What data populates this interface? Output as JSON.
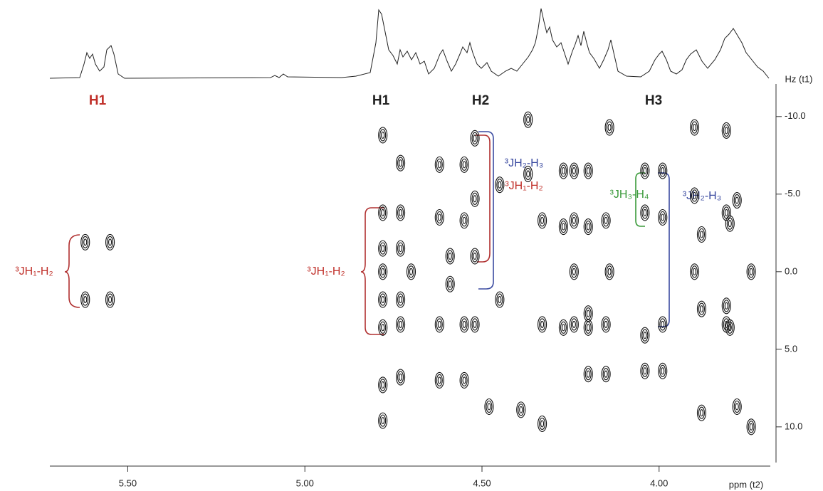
{
  "chart_data": {
    "type": "contour",
    "x_label": "ppm (t2)",
    "y_label": "Hz (t1)",
    "xlim": [
      5.72,
      3.69
    ],
    "ylim": [
      -12.1,
      12.3
    ],
    "xticks": [
      {
        "value": 5.5,
        "label": "5.50"
      },
      {
        "value": 5.0,
        "label": "5.00"
      },
      {
        "value": 4.5,
        "label": "4.50"
      },
      {
        "value": 4.0,
        "label": "4.00"
      }
    ],
    "yticks": [
      {
        "value": -10,
        "label": "-10.0"
      },
      {
        "value": -5,
        "label": "-5.0"
      },
      {
        "value": 0,
        "label": "0.0"
      },
      {
        "value": 5,
        "label": "5.0"
      },
      {
        "value": 10,
        "label": "10.0"
      }
    ],
    "color": "#111111",
    "peaks": {
      "x": [
        5.62,
        5.62,
        5.55,
        5.55,
        4.78,
        4.78,
        4.78,
        4.78,
        4.78,
        4.78,
        4.78,
        4.78,
        4.73,
        4.73,
        4.73,
        4.73,
        4.73,
        4.73,
        4.7,
        4.62,
        4.62,
        4.62,
        4.62,
        4.59,
        4.59,
        4.55,
        4.55,
        4.55,
        4.55,
        4.52,
        4.52,
        4.52,
        4.52,
        4.48,
        4.45,
        4.45,
        4.39,
        4.37,
        4.37,
        4.33,
        4.33,
        4.33,
        4.27,
        4.27,
        4.27,
        4.24,
        4.24,
        4.24,
        4.24,
        4.2,
        4.2,
        4.2,
        4.2,
        4.2,
        4.15,
        4.15,
        4.15,
        4.14,
        4.14,
        4.04,
        4.04,
        4.04,
        4.04,
        3.99,
        3.99,
        3.99,
        3.99,
        3.9,
        3.9,
        3.9,
        3.88,
        3.88,
        3.88,
        3.81,
        3.81,
        3.81,
        3.81,
        3.8,
        3.8,
        3.78,
        3.78,
        3.74,
        3.74
      ],
      "y": [
        -1.9,
        1.8,
        -1.9,
        1.8,
        -8.8,
        -3.8,
        -1.5,
        0,
        1.8,
        3.6,
        7.3,
        9.6,
        -7,
        -3.8,
        -1.5,
        1.8,
        3.4,
        6.8,
        0,
        -6.9,
        -3.5,
        3.4,
        7,
        -1,
        0.8,
        -6.9,
        -3.3,
        3.4,
        7,
        -8.6,
        -4.7,
        -1,
        3.4,
        8.7,
        -5.6,
        1.8,
        8.9,
        -9.8,
        -6.3,
        -3.3,
        3.4,
        9.8,
        -6.5,
        -2.9,
        3.6,
        -6.5,
        -3.3,
        0,
        3.4,
        -6.5,
        -2.9,
        2.7,
        3.6,
        6.6,
        -3.3,
        3.4,
        6.6,
        -9.3,
        0,
        -6.5,
        -3.8,
        4.1,
        6.4,
        -6.5,
        -3.5,
        3.4,
        6.4,
        -9.3,
        -4.9,
        0,
        -2.4,
        2.4,
        9.1,
        -9.1,
        -3.8,
        2.2,
        3.4,
        -3.1,
        3.6,
        -4.6,
        8.7,
        0,
        10
      ]
    },
    "annotations": {
      "h1_red": "H1",
      "h1": "H1",
      "h2": "H2",
      "h3": "H3",
      "j12_left": "³JH₁-H₂",
      "j12_mid": "³JH₁-H₂",
      "j23_a": "³JH₂-H₃",
      "j12_b": "³JH₁-H₂",
      "j34": "³JH₃-H₄",
      "j23_b": "³JH₂-H₃"
    }
  }
}
